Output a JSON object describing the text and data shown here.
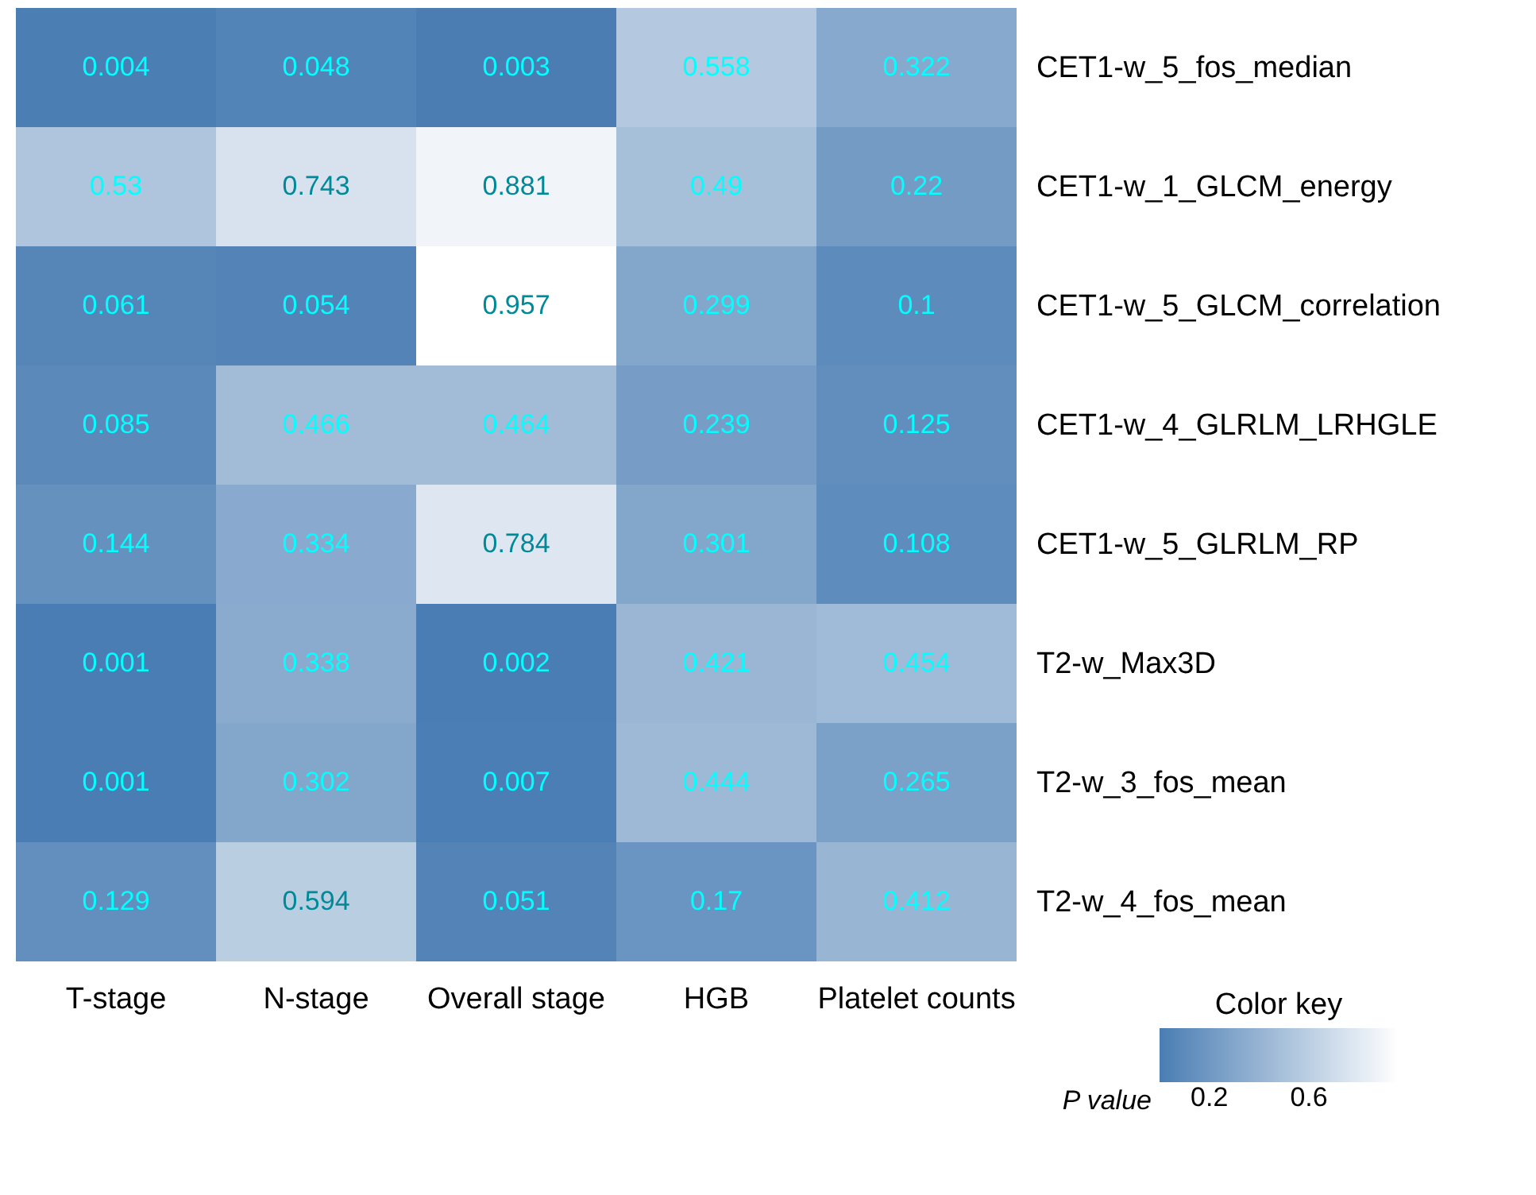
{
  "chart_data": {
    "type": "heatmap",
    "categories": [
      "T-stage",
      "N-stage",
      "Overall stage",
      "HGB",
      "Platelet counts"
    ],
    "y_categories": [
      "CET1-w_5_fos_median",
      "CET1-w_1_GLCM_energy",
      "CET1-w_5_GLCM_correlation",
      "CET1-w_4_GLRLM_LRHGLE",
      "CET1-w_5_GLRLM_RP",
      "T2-w_Max3D",
      "T2-w_3_fos_mean",
      "T2-w_4_fos_mean"
    ],
    "cells": [
      [
        0.004,
        0.048,
        0.003,
        0.558,
        0.322
      ],
      [
        0.53,
        0.743,
        0.881,
        0.49,
        0.22
      ],
      [
        0.061,
        0.054,
        0.957,
        0.299,
        0.1
      ],
      [
        0.085,
        0.466,
        0.464,
        0.239,
        0.125
      ],
      [
        0.144,
        0.334,
        0.784,
        0.301,
        0.108
      ],
      [
        0.001,
        0.338,
        0.002,
        0.421,
        0.454
      ],
      [
        0.001,
        0.302,
        0.007,
        0.444,
        0.265
      ],
      [
        0.129,
        0.594,
        0.051,
        0.17,
        0.412
      ]
    ],
    "data_labels": true,
    "legend_title": "Color key",
    "clabel": "P value",
    "clim": [
      0,
      0.957
    ],
    "cticks": [
      0.2,
      0.6
    ]
  }
}
